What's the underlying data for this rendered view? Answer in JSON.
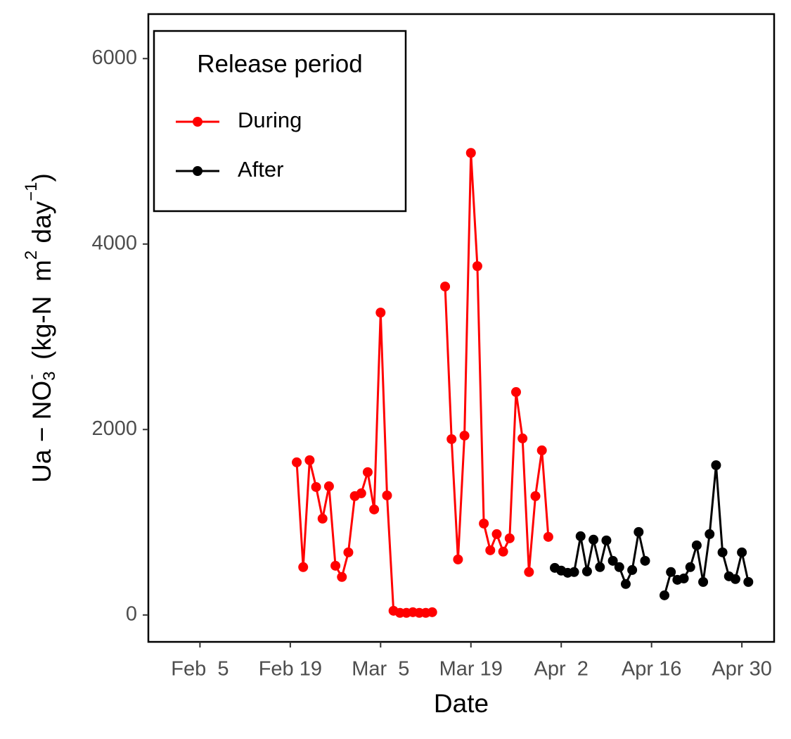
{
  "chart_data": {
    "type": "line",
    "xlabel": "Date",
    "ylabel_parts": [
      "Ua − NO",
      "3",
      "-",
      "  (kg-N  m",
      "2",
      " day",
      "−1",
      ")"
    ],
    "legend_title": "Release period",
    "legend_position": "top-left",
    "xlim": [
      "Jan 28",
      "May 5"
    ],
    "xticks": [
      "Feb  5",
      "Feb 19",
      "Mar  5",
      "Mar 19",
      "Apr  2",
      "Apr 16",
      "Apr 30"
    ],
    "ylim": [
      -290,
      6480
    ],
    "yticks": [
      0,
      2000,
      4000,
      6000
    ],
    "series": [
      {
        "name": "During",
        "color": "#ff0000",
        "x": [
          "Feb 20",
          "Feb 21",
          "Feb 22",
          "Feb 23",
          "Feb 24",
          "Feb 25",
          "Feb 26",
          "Feb 27",
          "Feb 28",
          "Mar 1",
          "Mar 2",
          "Mar 3",
          "Mar 4",
          "Mar 5",
          "Mar 6",
          "Mar 7",
          "Mar 8",
          "Mar 9",
          "Mar 10",
          "Mar 11",
          "Mar 12",
          "Mar 13",
          "Mar 14",
          "Mar 15",
          "Mar 16",
          "Mar 17",
          "Mar 18",
          "Mar 19",
          "Mar 20",
          "Mar 21",
          "Mar 22",
          "Mar 23",
          "Mar 24",
          "Mar 25",
          "Mar 26",
          "Mar 27",
          "Mar 28",
          "Mar 29",
          "Mar 30",
          "Mar 31"
        ],
        "values": [
          1646,
          516,
          1669,
          1380,
          1039,
          1388,
          531,
          410,
          675,
          1282,
          1312,
          1540,
          1138,
          3261,
          1289,
          45,
          23,
          23,
          30,
          23,
          23,
          30,
          null,
          3542,
          1896,
          599,
          1934,
          4983,
          3762,
          986,
          698,
          872,
          683,
          827,
          2404,
          1904,
          463,
          1282,
          1775,
          842
        ]
      },
      {
        "name": "After",
        "color": "#000000",
        "x": [
          "Apr 1",
          "Apr 2",
          "Apr 3",
          "Apr 4",
          "Apr 5",
          "Apr 6",
          "Apr 7",
          "Apr 8",
          "Apr 9",
          "Apr 10",
          "Apr 11",
          "Apr 12",
          "Apr 13",
          "Apr 14",
          "Apr 15",
          "Apr 16",
          "Apr 18",
          "Apr 19",
          "Apr 20",
          "Apr 21",
          "Apr 22",
          "Apr 23",
          "Apr 24",
          "Apr 25",
          "Apr 26",
          "Apr 27",
          "Apr 28",
          "Apr 29",
          "Apr 30",
          "May 1"
        ],
        "values": [
          508,
          478,
          455,
          463,
          849,
          470,
          812,
          516,
          804,
          584,
          516,
          334,
          485,
          895,
          584,
          null,
          212,
          463,
          379,
          394,
          516,
          751,
          356,
          872,
          1615,
          675,
          417,
          387,
          675,
          356
        ]
      }
    ]
  }
}
